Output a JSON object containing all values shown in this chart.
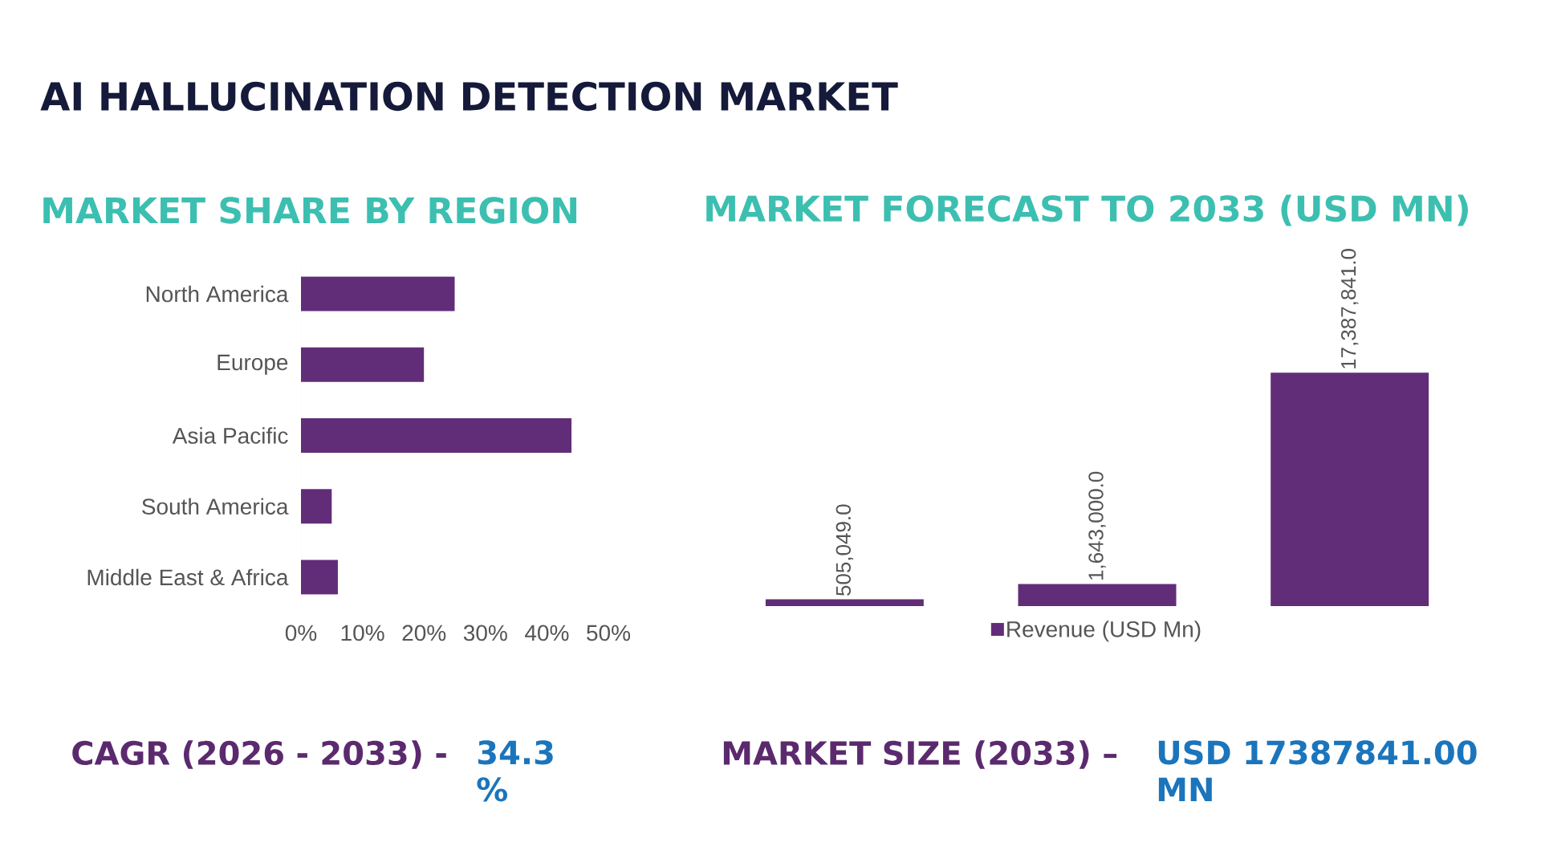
{
  "chart_data": [
    {
      "type": "bar",
      "orientation": "horizontal",
      "title": "MARKET SHARE BY REGION",
      "categories": [
        "North America",
        "Europe",
        "Asia Pacific",
        "South America",
        "Middle East & Africa"
      ],
      "values": [
        25,
        20,
        44,
        5,
        6
      ],
      "color": "#622d78",
      "xlim": [
        0,
        50
      ],
      "xticks": [
        {
          "value": 0,
          "label": "0%"
        },
        {
          "value": 10,
          "label": "10%"
        },
        {
          "value": 20,
          "label": "20%"
        },
        {
          "value": 30,
          "label": "30%"
        },
        {
          "value": 40,
          "label": "40%"
        },
        {
          "value": 50,
          "label": "50%"
        }
      ],
      "annotations": [
        "AI HALLUCINATION DETECTION MARKET",
        "CAGR (2026 - 2033) -",
        "34.3 %"
      ]
    },
    {
      "type": "bar",
      "title": "MARKET FORECAST TO 2033 (USD MN)",
      "categories": [
        null,
        null,
        null
      ],
      "series": [
        {
          "name": "Revenue (USD Mn)",
          "color": "#622d78",
          "values": [
            505049.0,
            1643000.0,
            17387841.0
          ],
          "value_labels": [
            "505,049.0",
            "1,643,000.0",
            "17,387,841.0"
          ]
        }
      ],
      "legend": "bottom",
      "annotations": [
        "MARKET SIZE (2033) –",
        "USD 17387841.00 MN"
      ]
    }
  ]
}
